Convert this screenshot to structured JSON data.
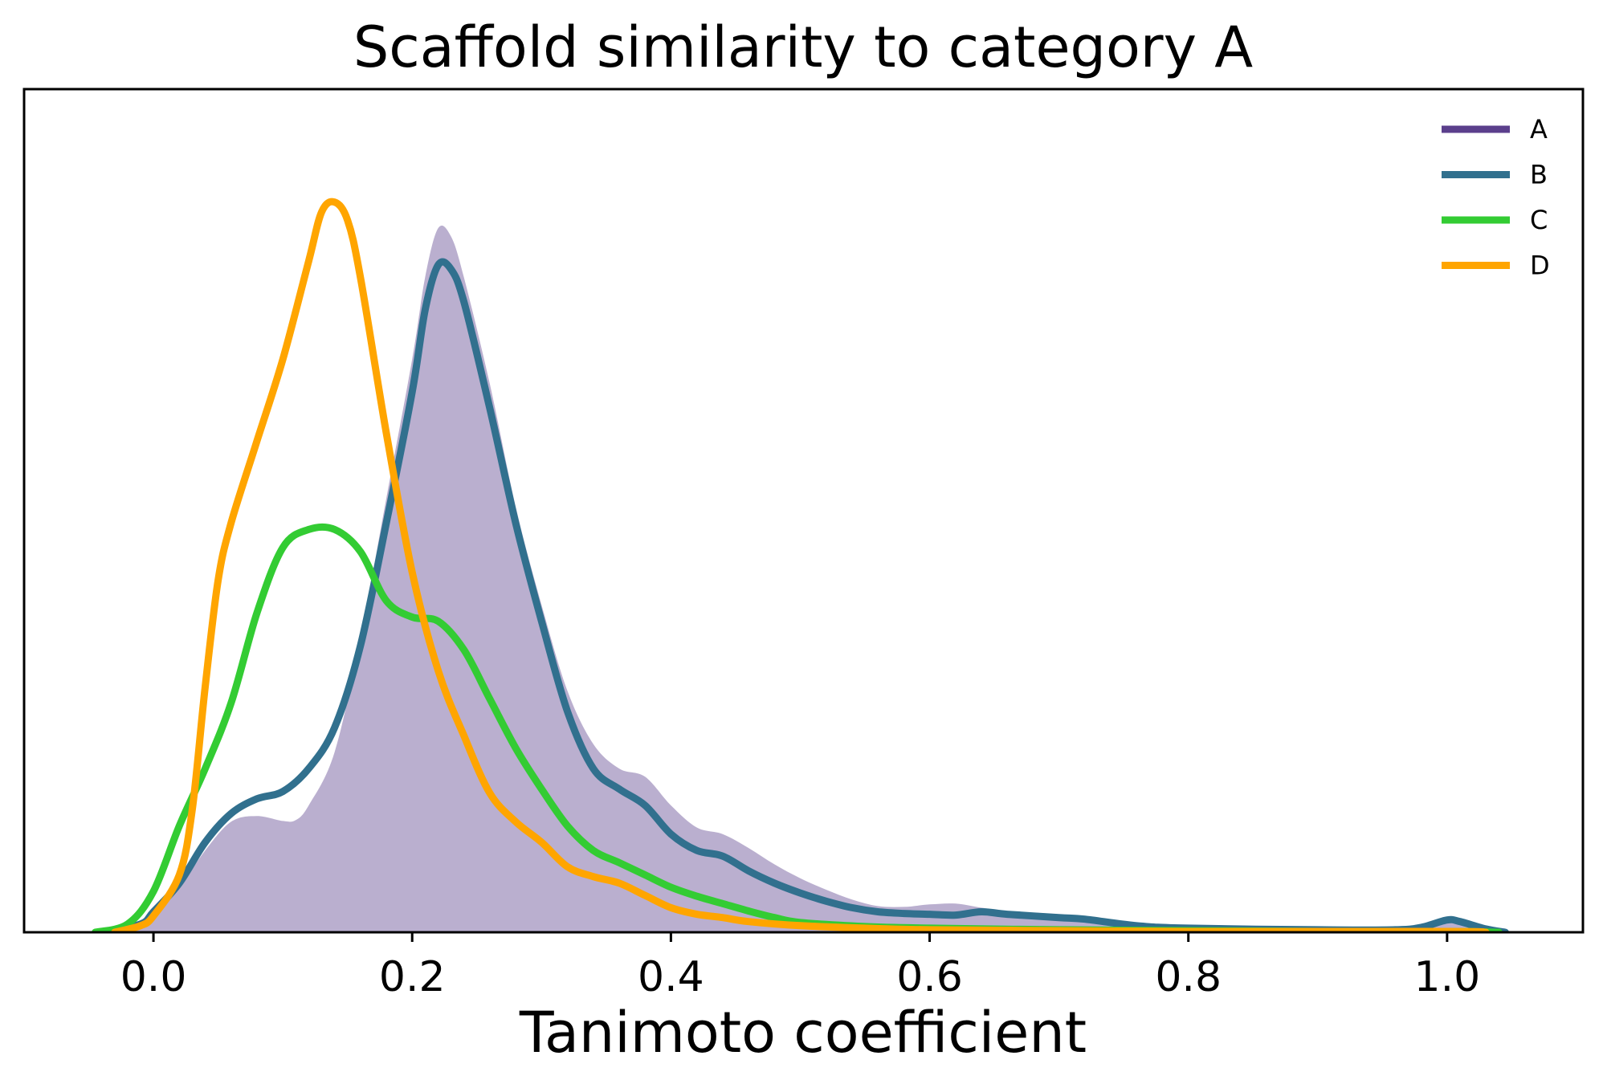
{
  "chart_data": {
    "type": "line",
    "title": "Scaffold similarity to category A",
    "xlabel": "Tanimoto coefficient",
    "ylabel": "",
    "xlim": [
      -0.1,
      1.105
    ],
    "ylim": [
      0,
      1.03
    ],
    "grid": false,
    "legend": "top-right",
    "x_ticks": [
      0.0,
      0.2,
      0.4,
      0.6,
      0.8,
      1.0
    ],
    "x_tick_labels": [
      "0.0",
      "0.2",
      "0.4",
      "0.6",
      "0.8",
      "1.0"
    ],
    "y_ticks": [],
    "series": [
      {
        "name": "A",
        "color": "#5b3f8c",
        "fill_color": "#baafcf",
        "style": "filled",
        "points": [
          [
            -0.04,
            0
          ],
          [
            -0.01,
            0.01
          ],
          [
            0.0,
            0.025
          ],
          [
            0.02,
            0.055
          ],
          [
            0.04,
            0.1
          ],
          [
            0.06,
            0.135
          ],
          [
            0.08,
            0.142
          ],
          [
            0.1,
            0.136
          ],
          [
            0.11,
            0.137
          ],
          [
            0.12,
            0.155
          ],
          [
            0.14,
            0.22
          ],
          [
            0.16,
            0.36
          ],
          [
            0.18,
            0.53
          ],
          [
            0.2,
            0.7
          ],
          [
            0.21,
            0.8
          ],
          [
            0.22,
            0.86
          ],
          [
            0.23,
            0.85
          ],
          [
            0.24,
            0.8
          ],
          [
            0.26,
            0.67
          ],
          [
            0.28,
            0.52
          ],
          [
            0.3,
            0.4
          ],
          [
            0.32,
            0.295
          ],
          [
            0.34,
            0.23
          ],
          [
            0.36,
            0.2
          ],
          [
            0.38,
            0.19
          ],
          [
            0.4,
            0.155
          ],
          [
            0.42,
            0.128
          ],
          [
            0.44,
            0.12
          ],
          [
            0.46,
            0.103
          ],
          [
            0.48,
            0.083
          ],
          [
            0.5,
            0.066
          ],
          [
            0.52,
            0.052
          ],
          [
            0.54,
            0.04
          ],
          [
            0.56,
            0.032
          ],
          [
            0.58,
            0.031
          ],
          [
            0.6,
            0.034
          ],
          [
            0.62,
            0.035
          ],
          [
            0.64,
            0.03
          ],
          [
            0.66,
            0.026
          ],
          [
            0.7,
            0.022
          ],
          [
            0.72,
            0.018
          ],
          [
            0.76,
            0.009
          ],
          [
            0.8,
            0.006
          ],
          [
            0.9,
            0.004
          ],
          [
            0.96,
            0.004
          ],
          [
            0.98,
            0.006
          ],
          [
            1.0,
            0.015
          ],
          [
            1.01,
            0.012
          ],
          [
            1.03,
            0.004
          ],
          [
            1.045,
            0
          ]
        ]
      },
      {
        "name": "B",
        "color": "#31708e",
        "style": "line",
        "points": [
          [
            -0.04,
            0
          ],
          [
            -0.01,
            0.01
          ],
          [
            0.0,
            0.025
          ],
          [
            0.02,
            0.06
          ],
          [
            0.04,
            0.11
          ],
          [
            0.06,
            0.145
          ],
          [
            0.08,
            0.163
          ],
          [
            0.1,
            0.172
          ],
          [
            0.12,
            0.2
          ],
          [
            0.14,
            0.25
          ],
          [
            0.16,
            0.35
          ],
          [
            0.18,
            0.5
          ],
          [
            0.2,
            0.66
          ],
          [
            0.21,
            0.76
          ],
          [
            0.22,
            0.815
          ],
          [
            0.23,
            0.81
          ],
          [
            0.24,
            0.77
          ],
          [
            0.26,
            0.64
          ],
          [
            0.28,
            0.5
          ],
          [
            0.3,
            0.38
          ],
          [
            0.32,
            0.27
          ],
          [
            0.34,
            0.2
          ],
          [
            0.36,
            0.175
          ],
          [
            0.38,
            0.155
          ],
          [
            0.4,
            0.12
          ],
          [
            0.42,
            0.1
          ],
          [
            0.44,
            0.093
          ],
          [
            0.46,
            0.075
          ],
          [
            0.48,
            0.06
          ],
          [
            0.5,
            0.048
          ],
          [
            0.52,
            0.038
          ],
          [
            0.54,
            0.03
          ],
          [
            0.56,
            0.025
          ],
          [
            0.58,
            0.023
          ],
          [
            0.6,
            0.022
          ],
          [
            0.62,
            0.021
          ],
          [
            0.64,
            0.025
          ],
          [
            0.66,
            0.022
          ],
          [
            0.7,
            0.018
          ],
          [
            0.72,
            0.016
          ],
          [
            0.76,
            0.008
          ],
          [
            0.8,
            0.005
          ],
          [
            0.9,
            0.003
          ],
          [
            0.96,
            0.003
          ],
          [
            0.98,
            0.006
          ],
          [
            1.0,
            0.015
          ],
          [
            1.01,
            0.013
          ],
          [
            1.03,
            0.004
          ],
          [
            1.045,
            0
          ]
        ]
      },
      {
        "name": "C",
        "color": "#33cc33",
        "style": "line",
        "points": [
          [
            -0.045,
            0
          ],
          [
            -0.02,
            0.01
          ],
          [
            0.0,
            0.05
          ],
          [
            0.02,
            0.13
          ],
          [
            0.04,
            0.2
          ],
          [
            0.06,
            0.28
          ],
          [
            0.08,
            0.39
          ],
          [
            0.1,
            0.47
          ],
          [
            0.12,
            0.492
          ],
          [
            0.14,
            0.492
          ],
          [
            0.16,
            0.465
          ],
          [
            0.18,
            0.405
          ],
          [
            0.2,
            0.385
          ],
          [
            0.22,
            0.38
          ],
          [
            0.24,
            0.345
          ],
          [
            0.26,
            0.285
          ],
          [
            0.28,
            0.225
          ],
          [
            0.3,
            0.175
          ],
          [
            0.32,
            0.13
          ],
          [
            0.34,
            0.1
          ],
          [
            0.36,
            0.085
          ],
          [
            0.38,
            0.07
          ],
          [
            0.4,
            0.055
          ],
          [
            0.42,
            0.044
          ],
          [
            0.44,
            0.035
          ],
          [
            0.46,
            0.026
          ],
          [
            0.48,
            0.018
          ],
          [
            0.5,
            0.012
          ],
          [
            0.55,
            0.007
          ],
          [
            0.6,
            0.005
          ],
          [
            0.7,
            0.003
          ],
          [
            0.8,
            0.002
          ],
          [
            0.9,
            0.001
          ],
          [
            1.0,
            0.001
          ],
          [
            1.04,
            0
          ]
        ]
      },
      {
        "name": "D",
        "color": "#ffa500",
        "style": "line",
        "points": [
          [
            -0.03,
            0
          ],
          [
            -0.01,
            0.008
          ],
          [
            0.0,
            0.02
          ],
          [
            0.02,
            0.07
          ],
          [
            0.03,
            0.15
          ],
          [
            0.04,
            0.3
          ],
          [
            0.05,
            0.43
          ],
          [
            0.06,
            0.5
          ],
          [
            0.08,
            0.6
          ],
          [
            0.1,
            0.7
          ],
          [
            0.12,
            0.82
          ],
          [
            0.13,
            0.88
          ],
          [
            0.14,
            0.892
          ],
          [
            0.15,
            0.87
          ],
          [
            0.16,
            0.8
          ],
          [
            0.18,
            0.61
          ],
          [
            0.2,
            0.44
          ],
          [
            0.22,
            0.32
          ],
          [
            0.24,
            0.24
          ],
          [
            0.26,
            0.17
          ],
          [
            0.28,
            0.135
          ],
          [
            0.3,
            0.11
          ],
          [
            0.32,
            0.08
          ],
          [
            0.34,
            0.068
          ],
          [
            0.36,
            0.06
          ],
          [
            0.38,
            0.045
          ],
          [
            0.4,
            0.03
          ],
          [
            0.42,
            0.022
          ],
          [
            0.44,
            0.018
          ],
          [
            0.46,
            0.013
          ],
          [
            0.5,
            0.008
          ],
          [
            0.55,
            0.005
          ],
          [
            0.6,
            0.003
          ],
          [
            0.7,
            0.002
          ],
          [
            0.8,
            0.001
          ],
          [
            1.0,
            0.001
          ],
          [
            1.03,
            0
          ]
        ]
      }
    ]
  }
}
